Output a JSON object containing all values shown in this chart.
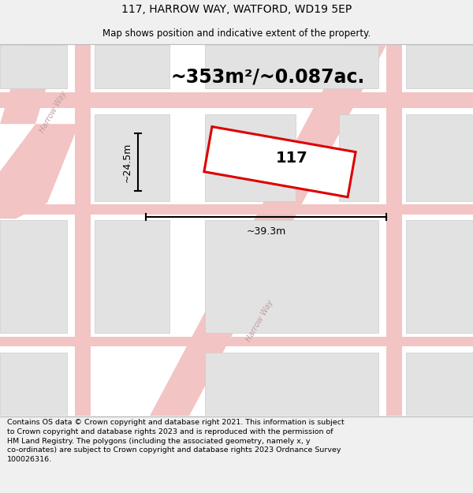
{
  "title_line1": "117, HARROW WAY, WATFORD, WD19 5EP",
  "title_line2": "Map shows position and indicative extent of the property.",
  "area_text": "~353m²/~0.087ac.",
  "width_label": "~39.3m",
  "height_label": "~24.5m",
  "property_number": "117",
  "footer_text": "Contains OS data © Crown copyright and database right 2021. This information is subject to Crown copyright and database rights 2023 and is reproduced with the permission of HM Land Registry. The polygons (including the associated geometry, namely x, y co-ordinates) are subject to Crown copyright and database rights 2023 Ordnance Survey 100026316.",
  "bg_color": "#f0f0f0",
  "map_bg": "#ffffff",
  "road_color": "#f2c4c4",
  "block_color": "#e2e2e2",
  "block_outline": "#cccccc",
  "property_fill": "#ffffff",
  "property_edge": "#dd0000",
  "title_fontsize": 10,
  "subtitle_fontsize": 8.5,
  "area_fontsize": 17,
  "label_fontsize": 9,
  "footer_fontsize": 6.8,
  "street_label_color": "#c0a0a0",
  "street_label_size": 7
}
